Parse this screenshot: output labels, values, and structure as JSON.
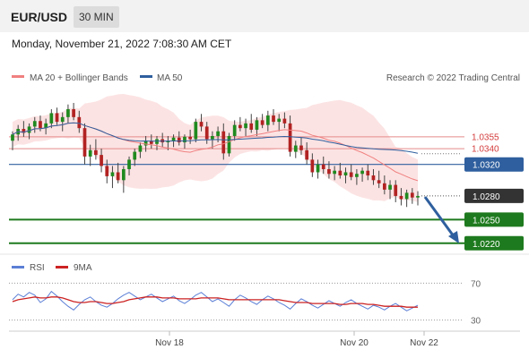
{
  "header": {
    "pair": "EUR/USD",
    "timeframe": "30 MIN"
  },
  "datetime": "Monday, November 21, 2022 7:08:30 AM CET",
  "legend": {
    "bb_label": "MA 20 + Bollinger Bands",
    "ma50_label": "MA 50",
    "bb_color": "#f08080",
    "ma50_color": "#2f5f9e",
    "credit": "Research © 2022 Trading Central"
  },
  "rsi_legend": {
    "rsi_label": "RSI",
    "ma_label": "9MA",
    "rsi_color": "#5b7fd6",
    "ma_color": "#cc2222"
  },
  "chart_data": {
    "type": "candlestick",
    "price_range": [
      1.0205,
      1.0415
    ],
    "levels": [
      {
        "value": 1.0355,
        "label": "1.0355",
        "kind": "resistance",
        "color": "#e58a8a"
      },
      {
        "value": 1.034,
        "label": "1.0340",
        "kind": "resistance",
        "color": "#e58a8a"
      },
      {
        "value": 1.032,
        "label": "1.0320",
        "kind": "pivot",
        "color": "#2f5f9e"
      },
      {
        "value": 1.028,
        "label": "1.0280",
        "kind": "last",
        "color": "#333333"
      },
      {
        "value": 1.025,
        "label": "1.0250",
        "kind": "support",
        "color": "#1e7a1e"
      },
      {
        "value": 1.022,
        "label": "1.0220",
        "kind": "support",
        "color": "#1e7a1e"
      }
    ],
    "x_ticks": [
      "Nov 18",
      "Nov 20",
      "Nov 22"
    ],
    "candles": [
      [
        1.035,
        1.0362,
        1.0338,
        1.0358
      ],
      [
        1.0358,
        1.037,
        1.035,
        1.0365
      ],
      [
        1.0365,
        1.0375,
        1.0355,
        1.036
      ],
      [
        1.036,
        1.0372,
        1.0352,
        1.0368
      ],
      [
        1.0368,
        1.038,
        1.036,
        1.0375
      ],
      [
        1.0375,
        1.0382,
        1.0362,
        1.0366
      ],
      [
        1.0366,
        1.0378,
        1.0358,
        1.0372
      ],
      [
        1.0372,
        1.039,
        1.0366,
        1.0385
      ],
      [
        1.0385,
        1.0392,
        1.037,
        1.0374
      ],
      [
        1.0374,
        1.0386,
        1.0362,
        1.038
      ],
      [
        1.038,
        1.0396,
        1.0372,
        1.039
      ],
      [
        1.039,
        1.0398,
        1.0376,
        1.038
      ],
      [
        1.038,
        1.0388,
        1.036,
        1.0366
      ],
      [
        1.0366,
        1.0372,
        1.032,
        1.033
      ],
      [
        1.033,
        1.0345,
        1.0318,
        1.0338
      ],
      [
        1.0338,
        1.0352,
        1.0326,
        1.0332
      ],
      [
        1.0332,
        1.034,
        1.031,
        1.0318
      ],
      [
        1.0318,
        1.0326,
        1.0296,
        1.0305
      ],
      [
        1.0305,
        1.0318,
        1.029,
        1.031
      ],
      [
        1.031,
        1.0322,
        1.0296,
        1.03
      ],
      [
        1.03,
        1.0318,
        1.0284,
        1.0314
      ],
      [
        1.0314,
        1.033,
        1.0306,
        1.0326
      ],
      [
        1.0326,
        1.034,
        1.0318,
        1.0336
      ],
      [
        1.0336,
        1.0348,
        1.0328,
        1.0344
      ],
      [
        1.0344,
        1.0356,
        1.0336,
        1.035
      ],
      [
        1.035,
        1.0358,
        1.034,
        1.0346
      ],
      [
        1.0346,
        1.0356,
        1.0338,
        1.0352
      ],
      [
        1.0352,
        1.036,
        1.0342,
        1.0348
      ],
      [
        1.0348,
        1.0356,
        1.0338,
        1.035
      ],
      [
        1.035,
        1.0358,
        1.0342,
        1.0354
      ],
      [
        1.0354,
        1.0362,
        1.0344,
        1.0348
      ],
      [
        1.0348,
        1.0358,
        1.034,
        1.0355
      ],
      [
        1.0355,
        1.0364,
        1.0346,
        1.0352
      ],
      [
        1.0352,
        1.0378,
        1.0348,
        1.0374
      ],
      [
        1.0374,
        1.0384,
        1.0362,
        1.0368
      ],
      [
        1.0368,
        1.0374,
        1.0346,
        1.0352
      ],
      [
        1.0352,
        1.0362,
        1.034,
        1.0356
      ],
      [
        1.0356,
        1.0368,
        1.0348,
        1.0362
      ],
      [
        1.0362,
        1.0372,
        1.0326,
        1.0334
      ],
      [
        1.0334,
        1.036,
        1.033,
        1.0356
      ],
      [
        1.0356,
        1.0376,
        1.035,
        1.037
      ],
      [
        1.037,
        1.038,
        1.0362,
        1.0366
      ],
      [
        1.0366,
        1.0378,
        1.0356,
        1.0372
      ],
      [
        1.0372,
        1.0384,
        1.036,
        1.0364
      ],
      [
        1.0364,
        1.038,
        1.0356,
        1.0376
      ],
      [
        1.0376,
        1.0384,
        1.0366,
        1.037
      ],
      [
        1.037,
        1.0388,
        1.0362,
        1.0382
      ],
      [
        1.0382,
        1.039,
        1.037,
        1.0374
      ],
      [
        1.0374,
        1.0384,
        1.0362,
        1.0378
      ],
      [
        1.0378,
        1.0386,
        1.0366,
        1.0372
      ],
      [
        1.0372,
        1.0382,
        1.033,
        1.0336
      ],
      [
        1.0336,
        1.035,
        1.0328,
        1.0344
      ],
      [
        1.0344,
        1.0354,
        1.0332,
        1.0338
      ],
      [
        1.0338,
        1.0348,
        1.032,
        1.0326
      ],
      [
        1.0326,
        1.0334,
        1.0304,
        1.031
      ],
      [
        1.031,
        1.0326,
        1.0302,
        1.032
      ],
      [
        1.032,
        1.033,
        1.0308,
        1.0314
      ],
      [
        1.0314,
        1.0324,
        1.0302,
        1.0308
      ],
      [
        1.0308,
        1.0318,
        1.03,
        1.0312
      ],
      [
        1.0312,
        1.0322,
        1.0302,
        1.0306
      ],
      [
        1.0306,
        1.0316,
        1.0296,
        1.031
      ],
      [
        1.031,
        1.032,
        1.03,
        1.0304
      ],
      [
        1.0304,
        1.0314,
        1.0294,
        1.0308
      ],
      [
        1.0308,
        1.0316,
        1.0298,
        1.0312
      ],
      [
        1.0312,
        1.032,
        1.03,
        1.0306
      ],
      [
        1.0306,
        1.0314,
        1.0294,
        1.03
      ],
      [
        1.03,
        1.0312,
        1.029,
        1.0296
      ],
      [
        1.0296,
        1.0306,
        1.0282,
        1.0288
      ],
      [
        1.0288,
        1.03,
        1.0276,
        1.0294
      ],
      [
        1.0294,
        1.03,
        1.0272,
        1.028
      ],
      [
        1.028,
        1.029,
        1.0268,
        1.0276
      ],
      [
        1.0276,
        1.0288,
        1.0266,
        1.0284
      ],
      [
        1.0284,
        1.029,
        1.027,
        1.0278
      ],
      [
        1.0278,
        1.0286,
        1.0268,
        1.028
      ]
    ],
    "rsi": {
      "levels": [
        70,
        30
      ],
      "range": [
        20,
        80
      ],
      "rsi": [
        52,
        58,
        55,
        60,
        57,
        49,
        53,
        61,
        56,
        50,
        45,
        41,
        47,
        52,
        55,
        50,
        46,
        44,
        48,
        53,
        57,
        60,
        56,
        52,
        55,
        58,
        54,
        50,
        53,
        56,
        51,
        48,
        52,
        57,
        60,
        55,
        50,
        53,
        49,
        45,
        52,
        57,
        54,
        50,
        47,
        52,
        56,
        53,
        49,
        46,
        42,
        48,
        53,
        50,
        46,
        43,
        47,
        51,
        48,
        45,
        49,
        52,
        48,
        45,
        42,
        46,
        44,
        41,
        45,
        48,
        44,
        40,
        43,
        46
      ],
      "ma": [
        50,
        52,
        53,
        54,
        55,
        54,
        54,
        55,
        55,
        54,
        52,
        50,
        49,
        49,
        50,
        50,
        49,
        48,
        48,
        49,
        50,
        52,
        53,
        54,
        55,
        55,
        55,
        54,
        54,
        54,
        53,
        53,
        53,
        53,
        54,
        54,
        54,
        54,
        53,
        52,
        52,
        52,
        52,
        52,
        52,
        52,
        52,
        52,
        52,
        51,
        50,
        49,
        49,
        49,
        48,
        48,
        48,
        48,
        48,
        47,
        47,
        48,
        48,
        48,
        47,
        47,
        46,
        45,
        45,
        45,
        45,
        44,
        44,
        44
      ]
    }
  }
}
